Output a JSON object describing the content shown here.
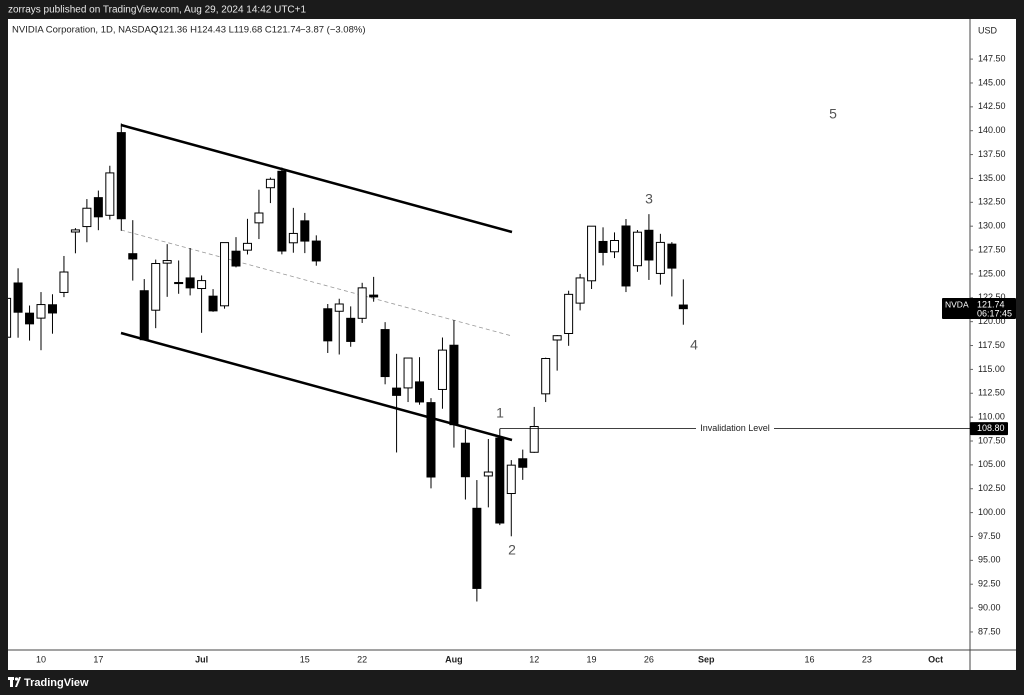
{
  "top_bar": {
    "text": "zorrays published on TradingView.com, Aug 29, 2024 14:42 UTC+1"
  },
  "chart_data": {
    "type": "candlestick",
    "header": {
      "symbol": "NVIDIA Corporation, 1D, NASDAQ",
      "ohlc": "O121.36  H124.43  L119.68  C121.74",
      "change": "−3.87 (−3.08%)"
    },
    "currency": "USD",
    "categories": [
      null,
      null,
      null,
      "10",
      null,
      null,
      null,
      null,
      "17",
      null,
      null,
      null,
      null,
      null,
      null,
      null,
      null,
      "Jul",
      null,
      null,
      null,
      null,
      null,
      null,
      null,
      null,
      "15",
      null,
      null,
      null,
      null,
      "22",
      null,
      null,
      null,
      null,
      null,
      null,
      null,
      "Aug",
      null,
      null,
      null,
      null,
      null,
      null,
      "12",
      null,
      null,
      null,
      null,
      "19",
      null,
      null,
      null,
      null,
      "26",
      null,
      null,
      null,
      null,
      "Sep",
      null,
      null,
      null,
      null,
      null,
      null,
      null,
      null,
      "16",
      null,
      null,
      null,
      null,
      "23",
      null,
      null,
      null,
      null,
      null,
      "Oct"
    ],
    "series": [
      {
        "name": "NVDA",
        "color": "#000000",
        "open": [
          118.37,
          124.05,
          119.77,
          120.37,
          121.77,
          123.06,
          129.39,
          129.96,
          132.99,
          131.14,
          139.8,
          127.12,
          123.24,
          121.2,
          126.13,
          124.1,
          124.58,
          123.47,
          121.13,
          121.66,
          127.38,
          127.49,
          130.35,
          134.03,
          135.75,
          128.26,
          130.56,
          128.44,
          121.35,
          121.85,
          120.35,
          120.35,
          122.78,
          119.17,
          113.04,
          116.19,
          113.69,
          111.52,
          112.9,
          117.53,
          103.76,
          92.06,
          103.84,
          107.81,
          102.0,
          105.64,
          106.32,
          112.44,
          118.53,
          118.76,
          121.94,
          124.28,
          128.4,
          127.32,
          130.02,
          125.86,
          129.57,
          125.05,
          128.12,
          121.36,
          null,
          null,
          null,
          null,
          null,
          null,
          null,
          null,
          null,
          null,
          null,
          null,
          null,
          null,
          null,
          null,
          null,
          null,
          null,
          null,
          null,
          null
        ],
        "high": [
          122.45,
          125.59,
          121.69,
          123.1,
          122.87,
          126.88,
          129.8,
          132.84,
          133.73,
          136.33,
          140.76,
          130.63,
          124.46,
          126.5,
          128.12,
          126.41,
          127.71,
          124.84,
          123.41,
          128.28,
          128.85,
          130.77,
          133.82,
          135.1,
          136.15,
          131.92,
          131.39,
          129.04,
          121.85,
          122.4,
          121.6,
          124.07,
          124.69,
          119.95,
          116.63,
          116.2,
          116.28,
          111.99,
          118.34,
          120.16,
          108.72,
          103.41,
          107.71,
          108.8,
          105.5,
          106.6,
          111.07,
          116.23,
          118.6,
          123.24,
          125.0,
          130.0,
          129.88,
          129.35,
          130.75,
          129.6,
          131.26,
          129.2,
          128.33,
          124.43,
          null,
          null,
          null,
          null,
          null,
          null,
          null,
          null,
          null,
          null,
          null,
          null,
          null,
          null,
          null,
          null,
          null,
          null,
          null,
          null,
          null,
          null
        ],
        "low": [
          117.47,
          118.32,
          118.02,
          117.01,
          118.74,
          122.57,
          127.16,
          128.32,
          129.58,
          130.69,
          129.52,
          124.3,
          118.04,
          119.32,
          122.6,
          122.92,
          122.75,
          118.83,
          121.03,
          121.36,
          125.68,
          127.04,
          128.65,
          132.42,
          127.05,
          127.22,
          127.18,
          125.86,
          116.72,
          116.56,
          117.37,
          119.86,
          122.09,
          113.44,
          106.3,
          111.58,
          111.3,
          102.54,
          110.88,
          106.81,
          101.37,
          90.69,
          100.55,
          98.69,
          97.52,
          103.43,
          106.26,
          111.58,
          114.87,
          117.47,
          121.18,
          123.42,
          125.89,
          126.66,
          123.1,
          125.22,
          124.37,
          123.88,
          122.64,
          119.68,
          null,
          null,
          null,
          null,
          null,
          null,
          null,
          null,
          null,
          null,
          null,
          null,
          null,
          null,
          null,
          null,
          null,
          null,
          null,
          null,
          null,
          null
        ],
        "close": [
          122.44,
          120.99,
          120.89,
          121.79,
          120.91,
          125.2,
          129.61,
          131.88,
          130.98,
          135.58,
          130.78,
          126.57,
          118.11,
          126.09,
          126.4,
          123.99,
          123.54,
          124.3,
          122.67,
          128.28,
          125.83,
          128.2,
          131.38,
          134.91,
          127.4,
          129.24,
          128.44,
          126.36,
          117.99,
          121.09,
          117.93,
          123.54,
          122.59,
          114.25,
          112.28,
          113.06,
          111.59,
          103.73,
          117.02,
          109.21,
          107.27,
          100.45,
          104.25,
          98.91,
          104.97,
          104.75,
          109.02,
          116.14,
          118.08,
          122.86,
          124.58,
          130.0,
          127.25,
          128.5,
          123.74,
          129.37,
          126.46,
          128.3,
          125.61,
          121.74,
          null,
          null,
          null,
          null,
          null,
          null,
          null,
          null,
          null,
          null,
          null,
          null,
          null,
          null,
          null,
          null,
          null,
          null,
          null,
          null,
          null,
          null
        ]
      }
    ],
    "ylim": [
      85.61,
      151.7
    ],
    "yticks": [
      {
        "value": 87.5,
        "label": "87.50"
      },
      {
        "value": 90,
        "label": "90.00"
      },
      {
        "value": 92.5,
        "label": "92.50"
      },
      {
        "value": 95,
        "label": "95.00"
      },
      {
        "value": 97.5,
        "label": "97.50"
      },
      {
        "value": 100,
        "label": "100.00"
      },
      {
        "value": 102.5,
        "label": "102.50"
      },
      {
        "value": 105,
        "label": "105.00"
      },
      {
        "value": 107.5,
        "label": "107.50"
      },
      {
        "value": 110,
        "label": "110.00"
      },
      {
        "value": 112.5,
        "label": "112.50"
      },
      {
        "value": 115,
        "label": "115.00"
      },
      {
        "value": 117.5,
        "label": "117.50"
      },
      {
        "value": 120,
        "label": "120.00"
      },
      {
        "value": 122.5,
        "label": "122.50"
      },
      {
        "value": 125,
        "label": "125.00"
      },
      {
        "value": 127.5,
        "label": "127.50"
      },
      {
        "value": 130,
        "label": "130.00"
      },
      {
        "value": 132.5,
        "label": "132.50"
      },
      {
        "value": 135,
        "label": "135.00"
      },
      {
        "value": 137.5,
        "label": "137.50"
      },
      {
        "value": 140,
        "label": "140.00"
      },
      {
        "value": 142.5,
        "label": "142.50"
      },
      {
        "value": 145,
        "label": "145.00"
      },
      {
        "value": 147.5,
        "label": "147.50"
      }
    ],
    "grid": false,
    "price_tag": {
      "price": "121.74",
      "countdown": "06:17:45"
    },
    "levels": [
      {
        "value": 108.8,
        "label": "108.80",
        "text": "Invalidation Level"
      }
    ],
    "annotations": [
      "1",
      "2",
      "3",
      "4",
      "5"
    ]
  },
  "footer": {
    "brand": "TradingView"
  }
}
